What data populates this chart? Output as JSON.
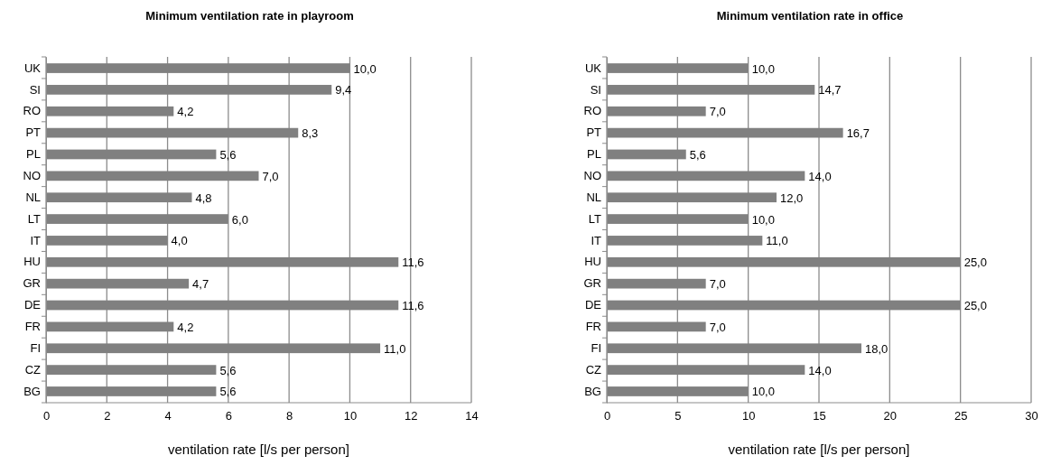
{
  "chart_data": [
    {
      "type": "bar",
      "orientation": "horizontal",
      "title": "Minimum ventilation rate in playroom",
      "xlabel": "ventilation rate [l/s per person]",
      "categories": [
        "UK",
        "SI",
        "RO",
        "PT",
        "PL",
        "NO",
        "NL",
        "LT",
        "IT",
        "HU",
        "GR",
        "DE",
        "FR",
        "FI",
        "CZ",
        "BG"
      ],
      "values": [
        10.0,
        9.4,
        4.2,
        8.3,
        5.6,
        7.0,
        4.8,
        6.0,
        4.0,
        11.6,
        4.7,
        11.6,
        4.2,
        11.0,
        5.6,
        5.6
      ],
      "value_labels": [
        "10,0",
        "9,4",
        "4,2",
        "8,3",
        "5,6",
        "7,0",
        "4,8",
        "6,0",
        "4,0",
        "11,6",
        "4,7",
        "11,6",
        "4,2",
        "11,0",
        "5,6",
        "5,6"
      ],
      "color": "#808080",
      "xlim": [
        0,
        14
      ],
      "xticks": [
        0,
        2,
        4,
        6,
        8,
        10,
        12,
        14
      ],
      "grid": "x"
    },
    {
      "type": "bar",
      "orientation": "horizontal",
      "title": "Minimum ventilation rate in office",
      "xlabel": "ventilation rate [l/s per person]",
      "categories": [
        "UK",
        "SI",
        "RO",
        "PT",
        "PL",
        "NO",
        "NL",
        "LT",
        "IT",
        "HU",
        "GR",
        "DE",
        "FR",
        "FI",
        "CZ",
        "BG"
      ],
      "values": [
        10.0,
        14.7,
        7.0,
        16.7,
        5.6,
        14.0,
        12.0,
        10.0,
        11.0,
        25.0,
        7.0,
        25.0,
        7.0,
        18.0,
        14.0,
        10.0
      ],
      "value_labels": [
        "10,0",
        "14,7",
        "7,0",
        "16,7",
        "5,6",
        "14,0",
        "12,0",
        "10,0",
        "11,0",
        "25,0",
        "7,0",
        "25,0",
        "7,0",
        "18,0",
        "14,0",
        "10,0"
      ],
      "color": "#808080",
      "xlim": [
        0,
        30
      ],
      "xticks": [
        0,
        5,
        10,
        15,
        20,
        25,
        30
      ],
      "grid": "x"
    }
  ]
}
